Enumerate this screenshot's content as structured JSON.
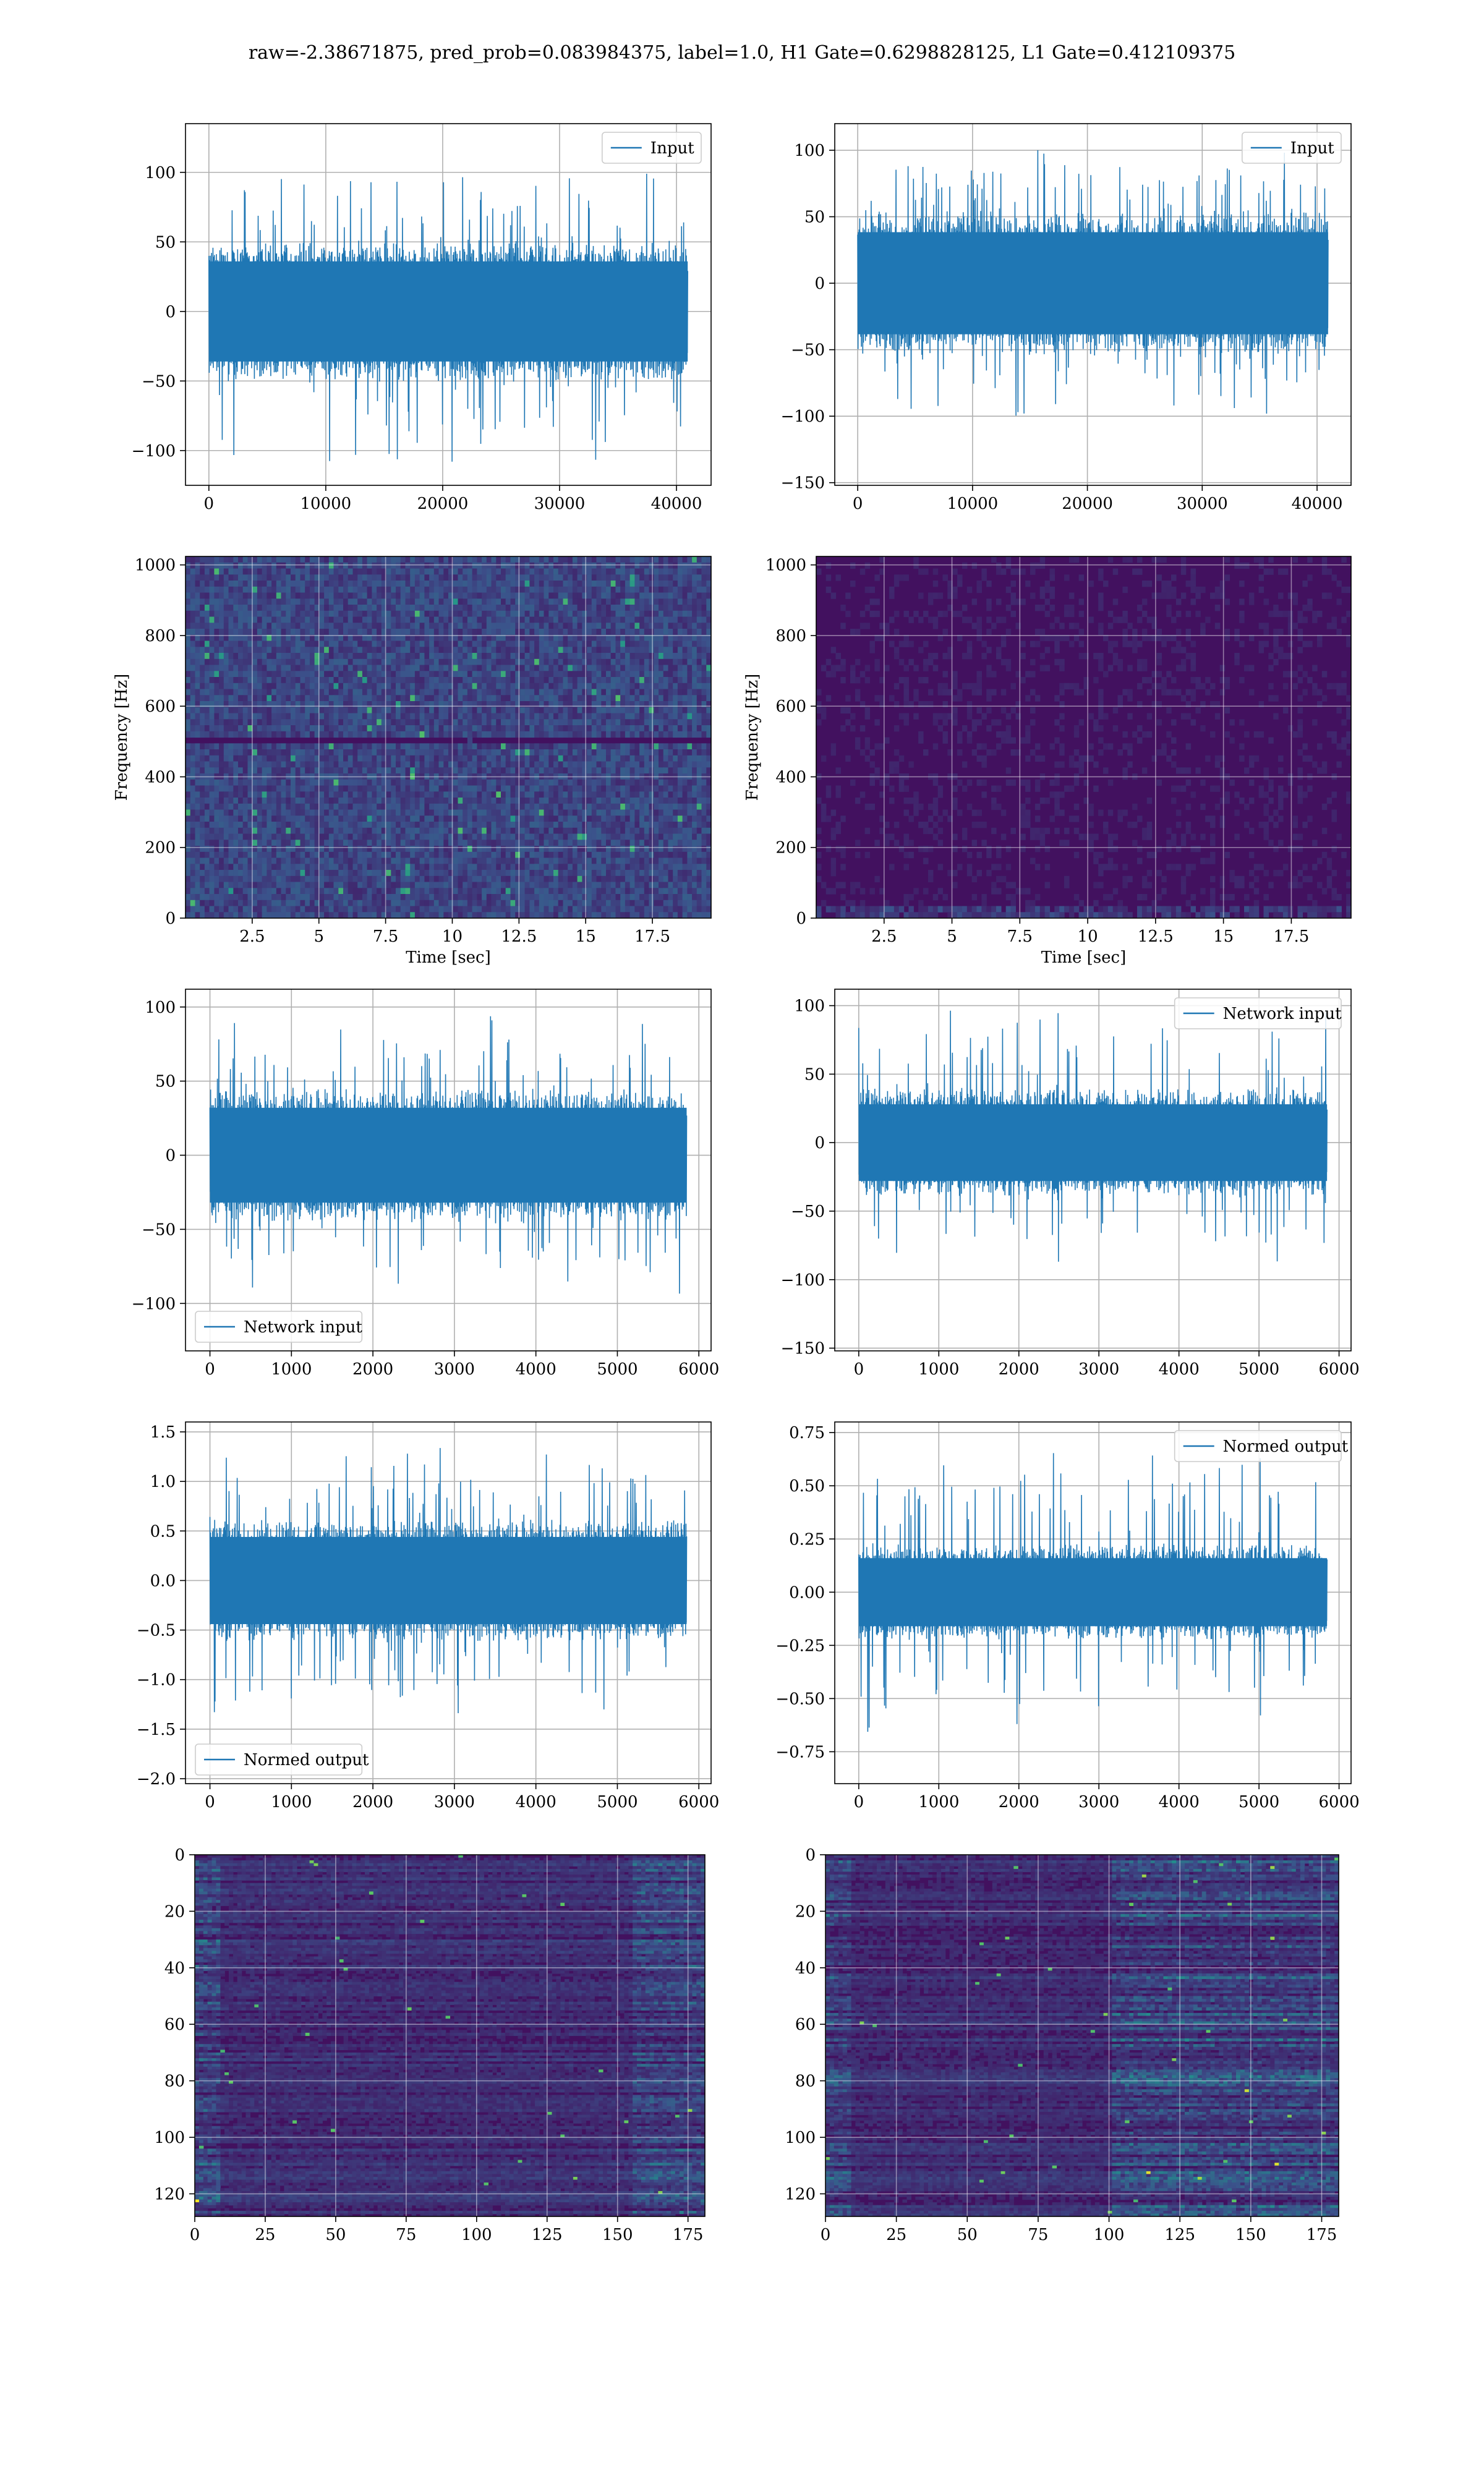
{
  "title": "raw=-2.38671875, pred_prob=0.083984375, label=1.0, H1 Gate=0.6298828125, L1 Gate=0.412109375",
  "colors": {
    "line": "#1f77b4",
    "grid": "#b0b0b0",
    "frame": "#000000",
    "viridis": [
      "#440154",
      "#3b528b",
      "#21918c",
      "#5ec962",
      "#fde725"
    ]
  },
  "chart_data": [
    {
      "id": "input-h1",
      "type": "line",
      "legend": "Input",
      "legend_loc": "upper-right",
      "xlim": [
        -2000,
        42960
      ],
      "ylim": [
        -125,
        135
      ],
      "xticks": [
        0,
        10000,
        20000,
        30000,
        40000
      ],
      "yticks": [
        -100,
        -50,
        0,
        50,
        100
      ],
      "x_extent": [
        0,
        40960
      ],
      "amp_core": 45,
      "amp_peak": 115,
      "grid": true
    },
    {
      "id": "input-l1",
      "type": "line",
      "legend": "Input",
      "legend_loc": "upper-right",
      "xlim": [
        -2000,
        42960
      ],
      "ylim": [
        -152,
        120
      ],
      "xticks": [
        0,
        10000,
        20000,
        30000,
        40000
      ],
      "yticks": [
        -150,
        -100,
        -50,
        0,
        50,
        100
      ],
      "x_extent": [
        0,
        40960
      ],
      "amp_core": 48,
      "amp_peak": 110,
      "grid": true
    },
    {
      "id": "spec-h1",
      "type": "heatmap",
      "xlabel": "Time [sec]",
      "ylabel": "Frequency [Hz]",
      "xlim": [
        0,
        19.7
      ],
      "ylim": [
        0,
        1024
      ],
      "xticks": [
        2.5,
        5.0,
        7.5,
        10.0,
        12.5,
        15.0,
        17.5
      ],
      "yticks": [
        0,
        200,
        400,
        600,
        800,
        1000
      ],
      "grid": true,
      "intensity": "high"
    },
    {
      "id": "spec-l1",
      "type": "heatmap",
      "xlabel": "Time [sec]",
      "ylabel": "Frequency [Hz]",
      "xlim": [
        0,
        19.7
      ],
      "ylim": [
        0,
        1024
      ],
      "xticks": [
        2.5,
        5.0,
        7.5,
        10.0,
        12.5,
        15.0,
        17.5
      ],
      "yticks": [
        0,
        200,
        400,
        600,
        800,
        1000
      ],
      "grid": true,
      "intensity": "low"
    },
    {
      "id": "net-h1",
      "type": "line",
      "legend": "Network input",
      "legend_loc": "lower-left",
      "xlim": [
        -300,
        6150
      ],
      "ylim": [
        -132,
        112
      ],
      "xticks": [
        0,
        1000,
        2000,
        3000,
        4000,
        5000,
        6000
      ],
      "yticks": [
        -100,
        -50,
        0,
        50,
        100
      ],
      "x_extent": [
        0,
        5850
      ],
      "amp_core": 40,
      "amp_peak": 100,
      "grid": true
    },
    {
      "id": "net-l1",
      "type": "line",
      "legend": "Network input",
      "legend_loc": "upper-right",
      "xlim": [
        -300,
        6150
      ],
      "ylim": [
        -152,
        112
      ],
      "xticks": [
        0,
        1000,
        2000,
        3000,
        4000,
        5000,
        6000
      ],
      "yticks": [
        -150,
        -100,
        -50,
        0,
        50,
        100
      ],
      "x_extent": [
        0,
        5850
      ],
      "amp_core": 35,
      "amp_peak": 105,
      "grid": true
    },
    {
      "id": "norm-h1",
      "type": "line",
      "legend": "Normed output",
      "legend_loc": "lower-left",
      "xlim": [
        -300,
        6150
      ],
      "ylim": [
        -2.05,
        1.6
      ],
      "xticks": [
        0,
        1000,
        2000,
        3000,
        4000,
        5000,
        6000
      ],
      "yticks": [
        -2.0,
        -1.5,
        -1.0,
        -0.5,
        0.0,
        0.5,
        1.0,
        1.5
      ],
      "ytick_decimals": 1,
      "x_extent": [
        0,
        5850
      ],
      "amp_core": 0.55,
      "amp_peak": 1.5,
      "grid": true
    },
    {
      "id": "norm-l1",
      "type": "line",
      "legend": "Normed output",
      "legend_loc": "upper-right",
      "xlim": [
        -300,
        6150
      ],
      "ylim": [
        -0.9,
        0.8
      ],
      "xticks": [
        0,
        1000,
        2000,
        3000,
        4000,
        5000,
        6000
      ],
      "yticks": [
        -0.75,
        -0.5,
        -0.25,
        0.0,
        0.25,
        0.5,
        0.75
      ],
      "ytick_decimals": 2,
      "x_extent": [
        0,
        5850
      ],
      "amp_core": 0.2,
      "amp_peak": 0.7,
      "grid": true
    },
    {
      "id": "feat-h1",
      "type": "heatmap",
      "xlim": [
        0,
        181
      ],
      "ylim": [
        128,
        0
      ],
      "xticks": [
        0,
        25,
        50,
        75,
        100,
        125,
        150,
        175
      ],
      "yticks": [
        0,
        20,
        40,
        60,
        80,
        100,
        120
      ],
      "grid": true,
      "intensity": "rows"
    },
    {
      "id": "feat-l1",
      "type": "heatmap",
      "xlim": [
        0,
        181
      ],
      "ylim": [
        128,
        0
      ],
      "xticks": [
        0,
        25,
        50,
        75,
        100,
        125,
        150,
        175
      ],
      "yticks": [
        0,
        20,
        40,
        60,
        80,
        100,
        120
      ],
      "grid": true,
      "intensity": "rows-right"
    }
  ]
}
